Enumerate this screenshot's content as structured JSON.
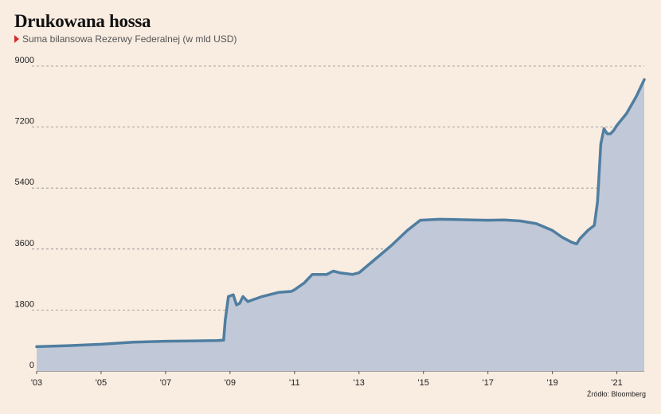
{
  "title": "Drukowana hossa",
  "subtitle": "Suma bilansowa Rezerwy Federalnej (w mld USD)",
  "source": "Źródło: Bloomberg",
  "colors": {
    "background": "#f9ece1",
    "line": "#4f7ea0",
    "area": "#c1c8d8",
    "grid": "#8a8a8a",
    "marker": "#d62b2b"
  },
  "chart_data": {
    "type": "area",
    "title": "Drukowana hossa",
    "subtitle": "Suma bilansowa Rezerwy Federalnej (w mld USD)",
    "ylim": [
      0,
      9000
    ],
    "yticks": [
      0,
      1800,
      3600,
      5400,
      7200,
      9000
    ],
    "ytick_labels": [
      "0",
      "1800",
      "3600",
      "5400",
      "7200",
      "9000"
    ],
    "xlim": [
      2003.0,
      2021.85
    ],
    "xticks": [
      2003,
      2005,
      2007,
      2009,
      2011,
      2013,
      2015,
      2017,
      2019,
      2021
    ],
    "xtick_labels": [
      "'03",
      "'05",
      "'07",
      "'09",
      "'11",
      "'13",
      "'15",
      "'17",
      "'19",
      "'21"
    ],
    "grid": true,
    "series": [
      {
        "x": [
          2003.0,
          2004.0,
          2005.0,
          2006.0,
          2007.0,
          2008.0,
          2008.6,
          2008.8,
          2008.85,
          2008.95,
          2009.1,
          2009.2,
          2009.3,
          2009.4,
          2009.55,
          2009.7,
          2009.85,
          2010.0,
          2010.5,
          2010.9,
          2011.0,
          2011.3,
          2011.55,
          2012.0,
          2012.2,
          2012.4,
          2012.8,
          2013.0,
          2013.5,
          2014.0,
          2014.5,
          2014.9,
          2015.5,
          2016.0,
          2016.5,
          2017.0,
          2017.5,
          2018.0,
          2018.5,
          2019.0,
          2019.3,
          2019.6,
          2019.75,
          2019.85,
          2020.1,
          2020.3,
          2020.4,
          2020.5,
          2020.6,
          2020.7,
          2020.8,
          2020.9,
          2021.0,
          2021.3,
          2021.6,
          2021.85
        ],
        "values": [
          720,
          750,
          790,
          850,
          880,
          890,
          900,
          910,
          1500,
          2200,
          2250,
          1950,
          2000,
          2200,
          2050,
          2100,
          2150,
          2200,
          2320,
          2350,
          2400,
          2600,
          2850,
          2850,
          2950,
          2900,
          2850,
          2900,
          3300,
          3700,
          4150,
          4450,
          4480,
          4470,
          4460,
          4450,
          4460,
          4430,
          4350,
          4150,
          3950,
          3800,
          3750,
          3900,
          4150,
          4300,
          5000,
          6700,
          7150,
          7000,
          7000,
          7100,
          7250,
          7600,
          8100,
          8600
        ]
      }
    ]
  }
}
